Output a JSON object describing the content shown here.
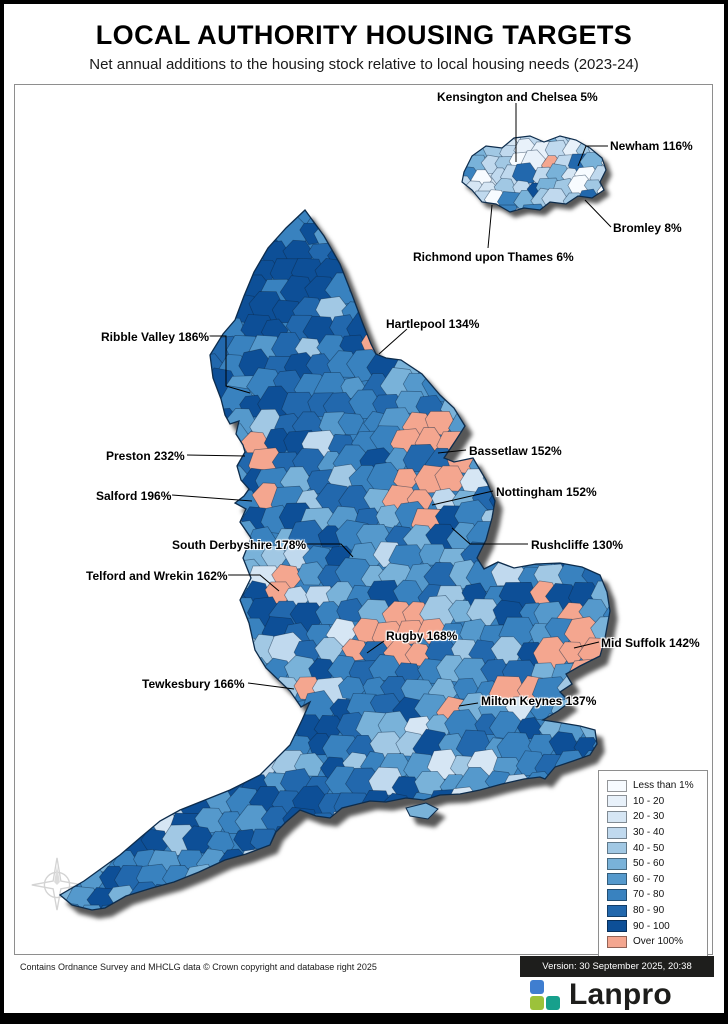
{
  "header": {
    "title": "LOCAL AUTHORITY HOUSING TARGETS",
    "subtitle": "Net annual additions to the housing stock relative to local housing needs (2023-24)"
  },
  "callouts": [
    {
      "label": "Kensington and Chelsea 5%"
    },
    {
      "label": "Newham 116%"
    },
    {
      "label": "Bromley 8%"
    },
    {
      "label": "Richmond upon Thames 6%"
    },
    {
      "label": "Hartlepool 134%"
    },
    {
      "label": "Ribble Valley 186%"
    },
    {
      "label": "Preston 232%"
    },
    {
      "label": "Salford 196%"
    },
    {
      "label": "Bassetlaw 152%"
    },
    {
      "label": "Nottingham 152%"
    },
    {
      "label": "South Derbyshire 178%"
    },
    {
      "label": "Rushcliffe 130%"
    },
    {
      "label": "Telford and Wrekin 162%"
    },
    {
      "label": "Rugby 168%"
    },
    {
      "label": "Mid Suffolk 142%"
    },
    {
      "label": "Tewkesbury 166%"
    },
    {
      "label": "Milton Keynes 137%"
    }
  ],
  "legend": {
    "items": [
      {
        "label": "Less than 1%",
        "color": "#f7fbff"
      },
      {
        "label": "10 - 20",
        "color": "#e8f1fa"
      },
      {
        "label": "20 - 30",
        "color": "#d6e6f4"
      },
      {
        "label": "30 - 40",
        "color": "#c0d9ee"
      },
      {
        "label": "40 - 50",
        "color": "#a1c8e4"
      },
      {
        "label": "50 - 60",
        "color": "#79b2d9"
      },
      {
        "label": "60 - 70",
        "color": "#5599cc"
      },
      {
        "label": "70 - 80",
        "color": "#3982bf"
      },
      {
        "label": "80 - 90",
        "color": "#2268ad"
      },
      {
        "label": "90 - 100",
        "color": "#0d4f97"
      },
      {
        "label": "Over 100%",
        "color": "#f4a68f"
      }
    ]
  },
  "map": {
    "outline_color": "#0d2c4c"
  },
  "footer": {
    "attribution": "Contains Ordnance Survey and MHCLG data © Crown copyright and database right 2025",
    "version": "Version: 30 September 2025, 20:38",
    "brand": "Lanpro",
    "logo_colors": [
      "#3f7ed0",
      "#9cc23a",
      "#17a08c"
    ]
  }
}
